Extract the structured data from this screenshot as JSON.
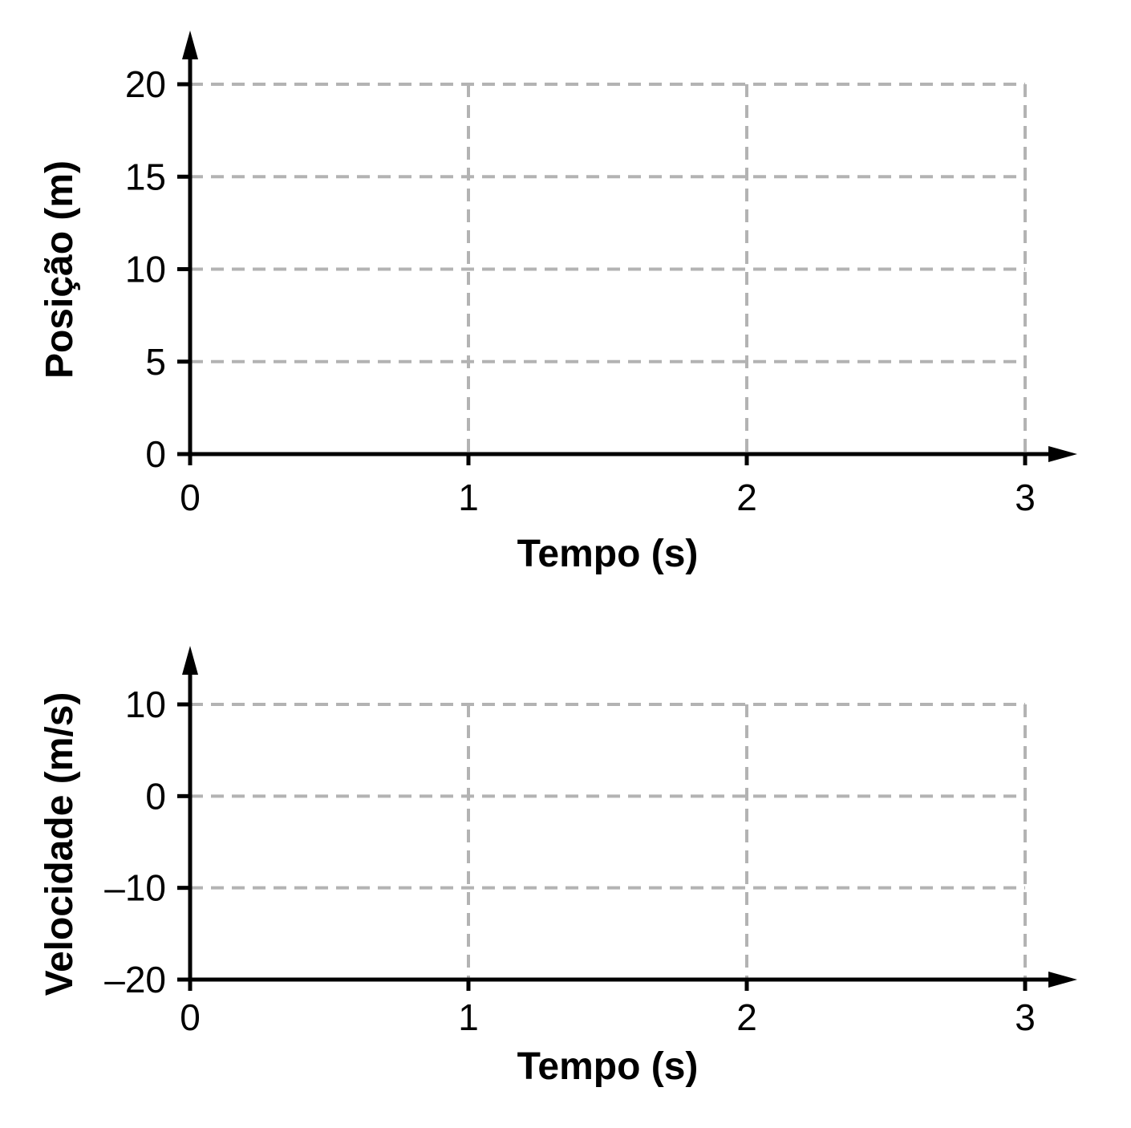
{
  "chart_data": [
    {
      "type": "line",
      "xlabel": "Tempo (s)",
      "ylabel": "Posição (m)",
      "xlim": [
        0,
        3
      ],
      "ylim": [
        0,
        20
      ],
      "x_ticks": [
        0,
        1,
        2,
        3
      ],
      "y_ticks": [
        0,
        5,
        10,
        15,
        20
      ],
      "x_tick_labels": [
        "0",
        "1",
        "2",
        "3"
      ],
      "y_tick_labels": [
        "0",
        "5",
        "10",
        "15",
        "20"
      ],
      "grid": true,
      "series": []
    },
    {
      "type": "line",
      "xlabel": "Tempo (s)",
      "ylabel": "Velocidade (m/s)",
      "xlim": [
        0,
        3
      ],
      "ylim": [
        -20,
        10
      ],
      "x_ticks": [
        0,
        1,
        2,
        3
      ],
      "y_ticks": [
        -20,
        -10,
        0,
        10
      ],
      "x_tick_labels": [
        "0",
        "1",
        "2",
        "3"
      ],
      "y_tick_labels": [
        "–20",
        "–10",
        "0",
        "10"
      ],
      "grid": true,
      "series": []
    }
  ]
}
